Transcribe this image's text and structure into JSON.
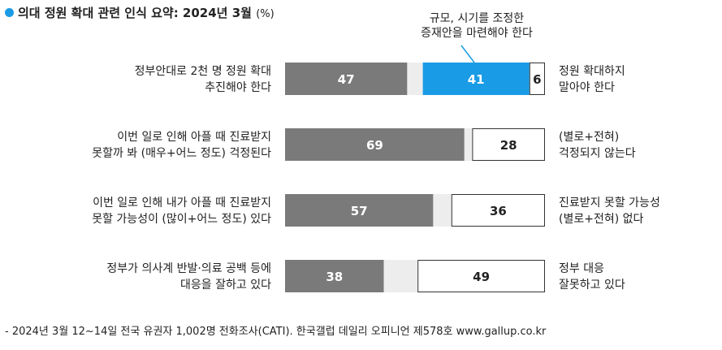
{
  "title": {
    "text": "의대 정원 확대 관련 인식 요약: 2024년 3월",
    "unit": "(%)"
  },
  "callout": {
    "line1": "규모, 시기를 조정한",
    "line2": "증재안을 마련해야 한다"
  },
  "footer": "- 2024년 3월 12~14일 전국 유권자 1,002명 전화조사(CATI). 한국갤럽 데일리 오피니언 제578호 www.gallup.co.kr",
  "colors": {
    "agree": "#7a7a7a",
    "middle": "#1a9be6",
    "gap": "#ededed",
    "disagree_border": "#333333"
  },
  "chart_data": {
    "type": "bar",
    "orientation": "horizontal-stacked",
    "unit": "%",
    "rows": [
      {
        "left_label": [
          "정부안대로 2천 명 정원 확대",
          "추진해야 한다"
        ],
        "right_label": [
          "정원 확대하지",
          "말아야 한다"
        ],
        "segments": [
          {
            "kind": "agree",
            "value": 47
          },
          {
            "kind": "gap",
            "value": 6
          },
          {
            "kind": "middle",
            "value": 41
          },
          {
            "kind": "disagree",
            "value": 6
          }
        ]
      },
      {
        "left_label": [
          "이번 일로 인해 아플 때 진료받지",
          "못할까 봐 (매우+어느 정도) 걱정된다"
        ],
        "right_label": [
          "(별로+전혀)",
          "걱정되지 않는다"
        ],
        "segments": [
          {
            "kind": "agree",
            "value": 69
          },
          {
            "kind": "gap",
            "value": 3
          },
          {
            "kind": "disagree",
            "value": 28
          }
        ]
      },
      {
        "left_label": [
          "이번 일로 인해 내가 아플 때 진료받지",
          "못할 가능성이 (많이+어느 정도) 있다"
        ],
        "right_label": [
          "진료받지 못할 가능성",
          "(별로+전혀) 없다"
        ],
        "segments": [
          {
            "kind": "agree",
            "value": 57
          },
          {
            "kind": "gap",
            "value": 7
          },
          {
            "kind": "disagree",
            "value": 36
          }
        ]
      },
      {
        "left_label": [
          "정부가 의사계 반발·의료 공백 등에",
          "대응을 잘하고 있다"
        ],
        "right_label": [
          "정부 대응",
          "잘못하고 있다"
        ],
        "segments": [
          {
            "kind": "agree",
            "value": 38
          },
          {
            "kind": "gap",
            "value": 13
          },
          {
            "kind": "disagree",
            "value": 49
          }
        ]
      }
    ]
  }
}
